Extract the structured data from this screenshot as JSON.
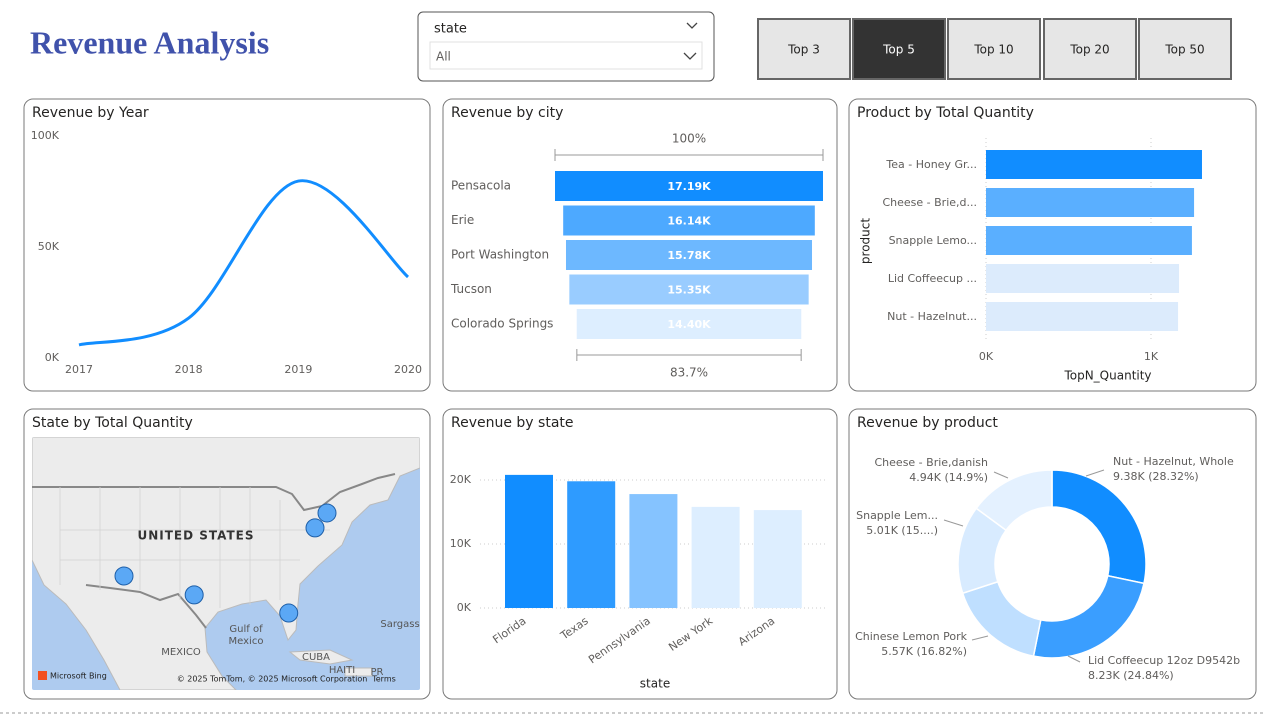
{
  "header": {
    "title": "Revenue Analysis"
  },
  "slicer": {
    "label": "state",
    "selection": "All"
  },
  "buttons": {
    "labels": [
      "Top 3",
      "Top 5",
      "Top 10",
      "Top 20",
      "Top 50"
    ],
    "selected": 1
  },
  "chart_data": [
    {
      "type": "line",
      "title": "Revenue by Year",
      "x": [
        2017,
        2018,
        2019,
        2020
      ],
      "values": [
        5900,
        18000,
        79700,
        36500
      ],
      "color": "#118DFF",
      "smooth": true,
      "xlim": [
        2017,
        2020
      ],
      "xticks": [
        2017,
        2018,
        2019,
        2020
      ],
      "ylim": [
        0,
        100000
      ],
      "yticks": [
        {
          "value": 0,
          "label": "0K"
        },
        {
          "value": 50000,
          "label": "50K"
        },
        {
          "value": 100000,
          "label": "100K"
        }
      ]
    },
    {
      "type": "funnel",
      "title": "Revenue by city",
      "categories": [
        "Pensacola",
        "Erie",
        "Port Washington",
        "Tucson",
        "Colorado Springs"
      ],
      "values": [
        17190,
        16140,
        15780,
        15350,
        14400
      ],
      "value_labels": [
        "17.19K",
        "16.14K",
        "15.78K",
        "15.35K",
        "14.40K"
      ],
      "colors": [
        "#118DFF",
        "#4DA9FF",
        "#6DB8FF",
        "#99CCFF",
        "#DDEEFF"
      ],
      "top_rate": {
        "value": 100,
        "label": "100%"
      },
      "bottom_rate": {
        "value": 83.7,
        "label": "83.7%"
      }
    },
    {
      "type": "hbar",
      "title": "Product by Total Quantity",
      "categories": [
        "Tea - Honey Gr...",
        "Cheese - Brie,d...",
        "Snapple Lemo...",
        "Lid Coffeecup ...",
        "Nut - Hazelnut..."
      ],
      "values": [
        1309,
        1261,
        1248,
        1170,
        1164
      ],
      "colors": [
        "#118DFF",
        "#5AAFFF",
        "#5AAFFF",
        "#DCEBFC",
        "#DCEBFC"
      ],
      "xlabel": "TopN_Quantity",
      "ylabel": "product",
      "xlim": [
        0,
        1450
      ],
      "xticks": [
        {
          "value": 0,
          "label": "0K"
        },
        {
          "value": 1000,
          "label": "1K"
        }
      ],
      "grid": true
    },
    {
      "type": "map",
      "title": "State by Total Quantity",
      "labels": [
        "UNITED STATES",
        "MEXICO",
        "Gulf of",
        "Mexico",
        "CUBA",
        "HAITI",
        "PR",
        "Sargass",
        "Microsoft Bing",
        "© 2025 TomTom, © 2025 Microsoft Corporation",
        "Terms"
      ],
      "locations": {
        "lon": [
          -110.9,
          -98.8,
          -82.5,
          -75.9,
          -77.97
        ],
        "lat": [
          32.2,
          29.3,
          26.5,
          41.9,
          39.6
        ]
      },
      "color": "#5BA8F5"
    },
    {
      "type": "bar",
      "title": "Revenue by state",
      "categories": [
        "Florida",
        "Texas",
        "Pennsylvania",
        "New York",
        "Arizona"
      ],
      "values": [
        20800,
        19800,
        17800,
        15800,
        15300
      ],
      "colors": [
        "#118DFF",
        "#2E9BFF",
        "#85C3FF",
        "#DDEEFF",
        "#DDEEFF"
      ],
      "xlabel": "state",
      "ylim": [
        0,
        22500
      ],
      "yticks": [
        {
          "value": 0,
          "label": "0K"
        },
        {
          "value": 10000,
          "label": "10K"
        },
        {
          "value": 20000,
          "label": "20K"
        }
      ],
      "grid": true
    },
    {
      "type": "donut",
      "title": "Revenue by product",
      "categories": [
        "Nut - Hazelnut, Whole",
        "Lid Coffeecup 12oz D9542b",
        "Chinese Lemon Pork",
        "Snapple Lem...",
        "Cheese - Brie,danish"
      ],
      "values": [
        9380,
        8230,
        5570,
        5010,
        4940
      ],
      "value_labels": [
        "9.38K (28.32%)",
        "8.23K (24.84%)",
        "5.57K (16.82%)",
        "5.01K (15....)",
        "4.94K (14.9%)"
      ],
      "colors": [
        "#118DFF",
        "#3A9EFF",
        "#BFDFFF",
        "#D8EBFF",
        "#E4F1FF"
      ]
    }
  ]
}
